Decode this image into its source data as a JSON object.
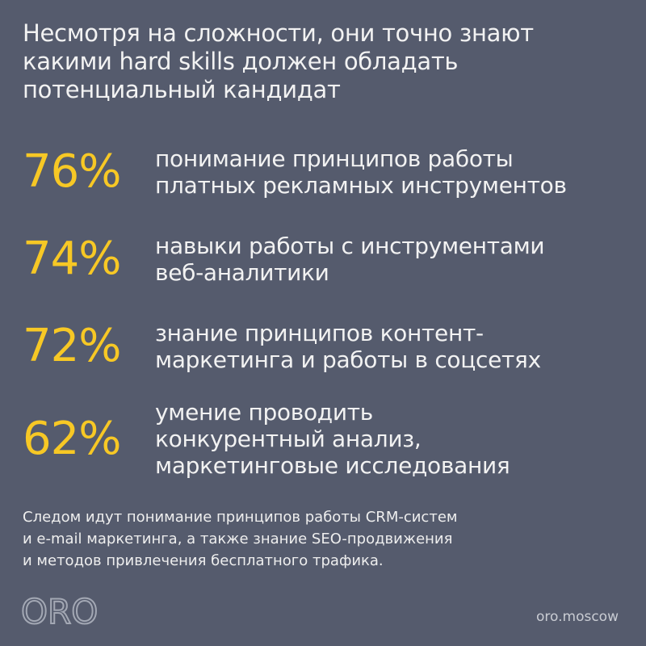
{
  "title": [
    "Несмотря на сложности, они точно знают",
    "какими hard skills должен обладать",
    "потенциальный кандидат"
  ],
  "items": [
    {
      "percent": "76%",
      "lines": [
        "понимание принципов работы",
        "платных рекламных инструментов"
      ]
    },
    {
      "percent": "74%",
      "lines": [
        "навыки работы с инструментами",
        "веб-аналитики"
      ]
    },
    {
      "percent": "72%",
      "lines": [
        "знание принципов контент-",
        "маркетинга и работы в соцсетях"
      ]
    },
    {
      "percent": "62%",
      "lines": [
        "умение проводить",
        "конкурентный анализ,",
        "маркетинговые исследования"
      ]
    }
  ],
  "note": [
    "Следом идут понимание принципов работы CRM-систем",
    "и e-mail маркетинга, а также знание SEO-продвижения",
    "и методов привлечения бесплатного трафика."
  ],
  "logo": "ORO",
  "url": "oro.moscow"
}
